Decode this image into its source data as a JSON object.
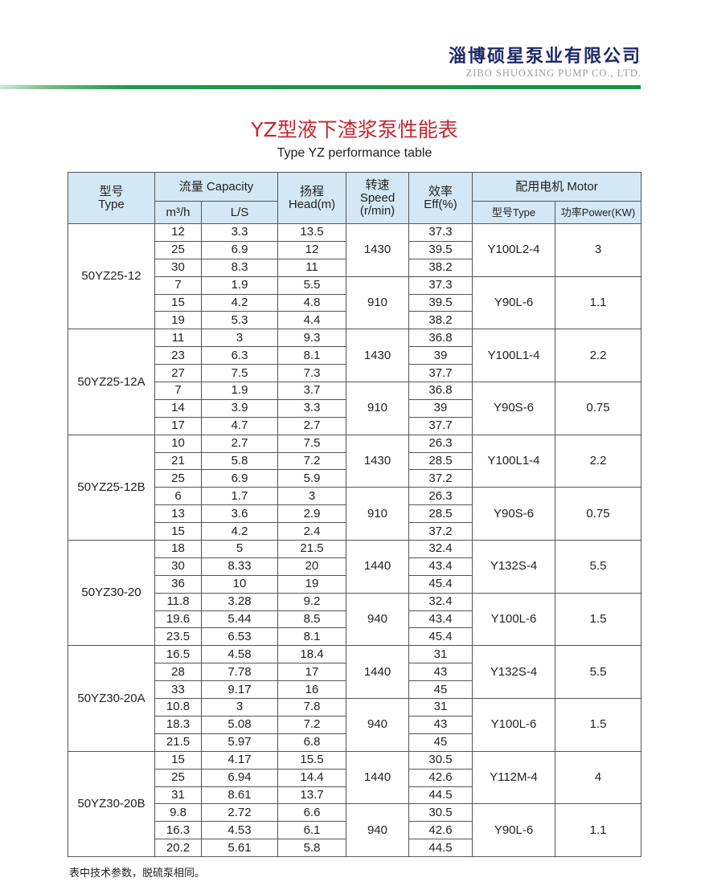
{
  "brand": {
    "name_cn": "淄博硕星泵业有限公司",
    "name_en": "ZIBO SHUOXING PUMP CO., LTD.",
    "accent": "#139546"
  },
  "title": "YZ型液下渣浆泵性能表",
  "subtitle": "Type YZ performance table",
  "headers": {
    "type": [
      "型号",
      "Type"
    ],
    "capacity": "流量 Capacity",
    "m3h": "m³/h",
    "ls": "L/S",
    "head": [
      "扬程",
      "Head(m)"
    ],
    "speed": [
      "转速",
      "Speed",
      "(r/min)"
    ],
    "eff": [
      "效率",
      "Eff(%)"
    ],
    "motor": "配用电机 Motor",
    "motor_type": "型号Type",
    "motor_power": "功率Power(KW)"
  },
  "models": [
    {
      "name": "50YZ25-12",
      "groups": [
        {
          "speed": "1430",
          "motor_type": "Y100L2-4",
          "power": "3",
          "rows": [
            [
              "12",
              "3.3",
              "13.5",
              "37.3"
            ],
            [
              "25",
              "6.9",
              "12",
              "39.5"
            ],
            [
              "30",
              "8.3",
              "11",
              "38.2"
            ]
          ]
        },
        {
          "speed": "910",
          "motor_type": "Y90L-6",
          "power": "1.1",
          "rows": [
            [
              "7",
              "1.9",
              "5.5",
              "37.3"
            ],
            [
              "15",
              "4.2",
              "4.8",
              "39.5"
            ],
            [
              "19",
              "5.3",
              "4.4",
              "38.2"
            ]
          ]
        }
      ]
    },
    {
      "name": "50YZ25-12A",
      "groups": [
        {
          "speed": "1430",
          "motor_type": "Y100L1-4",
          "power": "2.2",
          "rows": [
            [
              "11",
              "3",
              "9.3",
              "36.8"
            ],
            [
              "23",
              "6.3",
              "8.1",
              "39"
            ],
            [
              "27",
              "7.5",
              "7.3",
              "37.7"
            ]
          ]
        },
        {
          "speed": "910",
          "motor_type": "Y90S-6",
          "power": "0.75",
          "rows": [
            [
              "7",
              "1.9",
              "3.7",
              "36.8"
            ],
            [
              "14",
              "3.9",
              "3.3",
              "39"
            ],
            [
              "17",
              "4.7",
              "2.7",
              "37.7"
            ]
          ]
        }
      ]
    },
    {
      "name": "50YZ25-12B",
      "groups": [
        {
          "speed": "1430",
          "motor_type": "Y100L1-4",
          "power": "2.2",
          "rows": [
            [
              "10",
              "2.7",
              "7.5",
              "26.3"
            ],
            [
              "21",
              "5.8",
              "7.2",
              "28.5"
            ],
            [
              "25",
              "6.9",
              "5.9",
              "37.2"
            ]
          ]
        },
        {
          "speed": "910",
          "motor_type": "Y90S-6",
          "power": "0.75",
          "rows": [
            [
              "6",
              "1.7",
              "3",
              "26.3"
            ],
            [
              "13",
              "3.6",
              "2.9",
              "28.5"
            ],
            [
              "15",
              "4.2",
              "2.4",
              "37.2"
            ]
          ]
        }
      ]
    },
    {
      "name": "50YZ30-20",
      "groups": [
        {
          "speed": "1440",
          "motor_type": "Y132S-4",
          "power": "5.5",
          "rows": [
            [
              "18",
              "5",
              "21.5",
              "32.4"
            ],
            [
              "30",
              "8.33",
              "20",
              "43.4"
            ],
            [
              "36",
              "10",
              "19",
              "45.4"
            ]
          ]
        },
        {
          "speed": "940",
          "motor_type": "Y100L-6",
          "power": "1.5",
          "rows": [
            [
              "11.8",
              "3.28",
              "9.2",
              "32.4"
            ],
            [
              "19.6",
              "5.44",
              "8.5",
              "43.4"
            ],
            [
              "23.5",
              "6.53",
              "8.1",
              "45.4"
            ]
          ]
        }
      ]
    },
    {
      "name": "50YZ30-20A",
      "groups": [
        {
          "speed": "1440",
          "motor_type": "Y132S-4",
          "power": "5.5",
          "rows": [
            [
              "16.5",
              "4.58",
              "18.4",
              "31"
            ],
            [
              "28",
              "7.78",
              "17",
              "43"
            ],
            [
              "33",
              "9.17",
              "16",
              "45"
            ]
          ]
        },
        {
          "speed": "940",
          "motor_type": "Y100L-6",
          "power": "1.5",
          "rows": [
            [
              "10.8",
              "3",
              "7.8",
              "31"
            ],
            [
              "18.3",
              "5.08",
              "7.2",
              "43"
            ],
            [
              "21.5",
              "5.97",
              "6.8",
              "45"
            ]
          ]
        }
      ]
    },
    {
      "name": "50YZ30-20B",
      "groups": [
        {
          "speed": "1440",
          "motor_type": "Y112M-4",
          "power": "4",
          "rows": [
            [
              "15",
              "4.17",
              "15.5",
              "30.5"
            ],
            [
              "25",
              "6.94",
              "14.4",
              "42.6"
            ],
            [
              "31",
              "8.61",
              "13.7",
              "44.5"
            ]
          ]
        },
        {
          "speed": "940",
          "motor_type": "Y90L-6",
          "power": "1.1",
          "rows": [
            [
              "9.8",
              "2.72",
              "6.6",
              "30.5"
            ],
            [
              "16.3",
              "4.53",
              "6.1",
              "42.6"
            ],
            [
              "20.2",
              "5.61",
              "5.8",
              "44.5"
            ]
          ]
        }
      ]
    }
  ],
  "note": "表中技术参数，脱硫泵相同。"
}
